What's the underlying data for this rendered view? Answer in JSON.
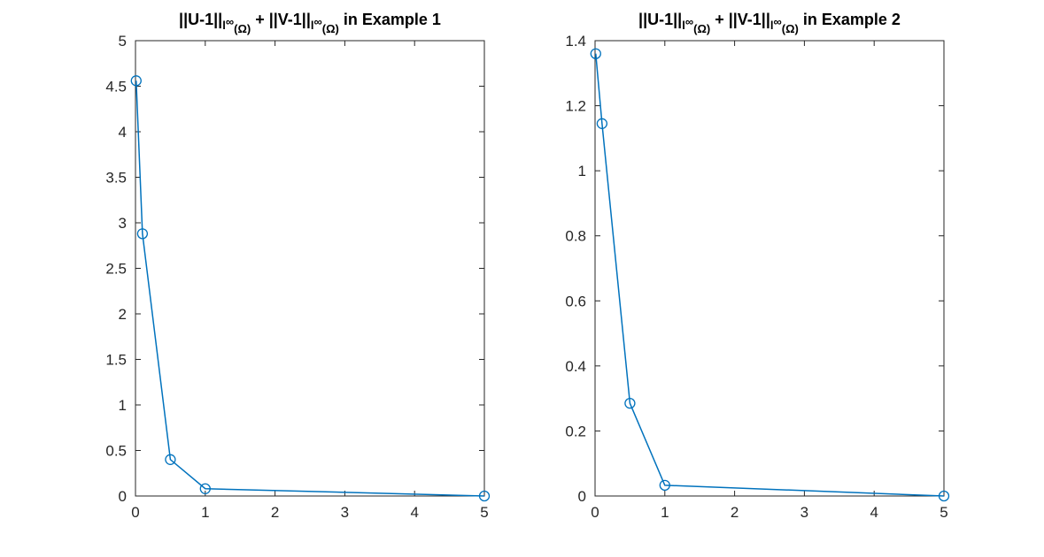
{
  "colors": {
    "line": "#0072BD",
    "axes": "#262626",
    "background": "#ffffff"
  },
  "chart_data": [
    {
      "type": "line",
      "marker": "circle",
      "title": {
        "p1": "||U-1||",
        "s1": "l",
        "s2": "∞",
        "s3": "(Ω)",
        "p2": " + ||V-1||",
        "s4": "l",
        "s5": "∞",
        "s6": "(Ω)",
        "p3": " in Example 1"
      },
      "xlim": [
        0,
        5
      ],
      "ylim": [
        0,
        5
      ],
      "xticks": [
        0,
        1,
        2,
        3,
        4,
        5
      ],
      "xtick_labels": [
        "0",
        "1",
        "2",
        "3",
        "4",
        "5"
      ],
      "yticks": [
        0,
        0.5,
        1,
        1.5,
        2,
        2.5,
        3,
        3.5,
        4,
        4.5,
        5
      ],
      "ytick_labels": [
        "0",
        "0.5",
        "1",
        "1.5",
        "2",
        "2.5",
        "3",
        "3.5",
        "4",
        "4.5",
        "5"
      ],
      "grid": false,
      "series": [
        {
          "x": [
            0.01,
            0.1,
            0.5,
            1,
            5
          ],
          "y": [
            4.56,
            2.88,
            0.4,
            0.08,
            0.0
          ]
        }
      ]
    },
    {
      "type": "line",
      "marker": "circle",
      "title": {
        "p1": "||U-1||",
        "s1": "l",
        "s2": "∞",
        "s3": "(Ω)",
        "p2": " + ||V-1||",
        "s4": "l",
        "s5": "∞",
        "s6": "(Ω)",
        "p3": " in Example 2"
      },
      "xlim": [
        0,
        5
      ],
      "ylim": [
        0,
        1.4
      ],
      "xticks": [
        0,
        1,
        2,
        3,
        4,
        5
      ],
      "xtick_labels": [
        "0",
        "1",
        "2",
        "3",
        "4",
        "5"
      ],
      "yticks": [
        0,
        0.2,
        0.4,
        0.6,
        0.8,
        1,
        1.2,
        1.4
      ],
      "ytick_labels": [
        "0",
        "0.2",
        "0.4",
        "0.6",
        "0.8",
        "1",
        "1.2",
        "1.4"
      ],
      "grid": false,
      "series": [
        {
          "x": [
            0.01,
            0.1,
            0.5,
            1,
            5
          ],
          "y": [
            1.36,
            1.145,
            0.285,
            0.033,
            0.0
          ]
        }
      ]
    }
  ]
}
